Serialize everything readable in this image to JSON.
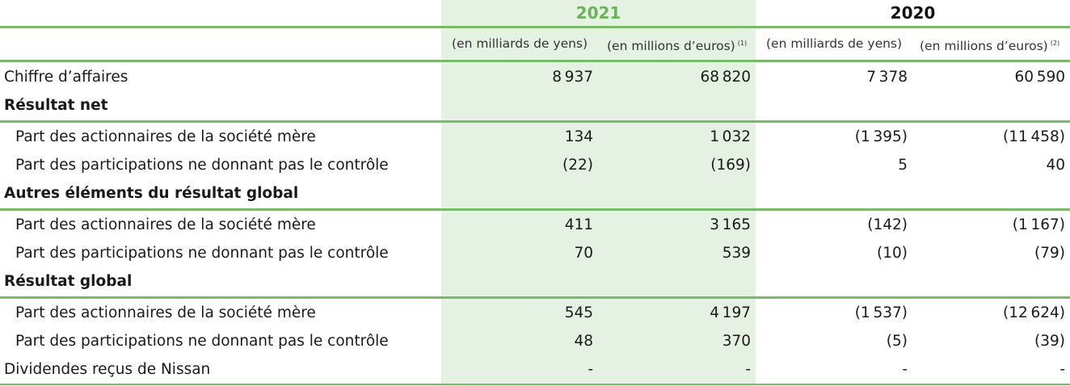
{
  "header": {
    "year_current": "2021",
    "year_previous": "2020",
    "unit_yen": "(en milliards de yens)",
    "unit_eur_2021": "(en millions d’euros)",
    "note_2021": "(1)",
    "unit_yen_2020": "(en milliards de yens)",
    "unit_eur_2020": "(en millions d’euros)",
    "note_2020": "(2)"
  },
  "rows": [
    {
      "label": "Chiffre d’affaires",
      "v1": "8 937",
      "v2": "68 820",
      "v3": "7 378",
      "v4": "60 590"
    },
    {
      "label": "Résultat net"
    },
    {
      "label": "Part des actionnaires de la société mère",
      "v1": "134",
      "v2": "1 032",
      "v3": "(1 395)",
      "v4": "(11 458)"
    },
    {
      "label": "Part des participations ne donnant pas le contrôle",
      "v1": "(22)",
      "v2": "(169)",
      "v3": "5",
      "v4": "40"
    },
    {
      "label": "Autres éléments du résultat global"
    },
    {
      "label": "Part des actionnaires de la société mère",
      "v1": "411",
      "v2": "3 165",
      "v3": "(142)",
      "v4": "(1 167)"
    },
    {
      "label": "Part des participations ne donnant pas le contrôle",
      "v1": "70",
      "v2": "539",
      "v3": "(10)",
      "v4": "(79)"
    },
    {
      "label": "Résultat global"
    },
    {
      "label": "Part des actionnaires de la société mère",
      "v1": "545",
      "v2": "4 197",
      "v3": "(1 537)",
      "v4": "(12 624)"
    },
    {
      "label": "Part des participations ne donnant pas le contrôle",
      "v1": "48",
      "v2": "370",
      "v3": "(5)",
      "v4": "(39)"
    },
    {
      "label": "Dividendes reçus de Nissan",
      "v1": "-",
      "v2": "-",
      "v3": "-",
      "v4": "-"
    }
  ],
  "colors": {
    "accent": "#78b96a",
    "year_current": "#6bb25a",
    "shade": "#e5f1e3"
  }
}
